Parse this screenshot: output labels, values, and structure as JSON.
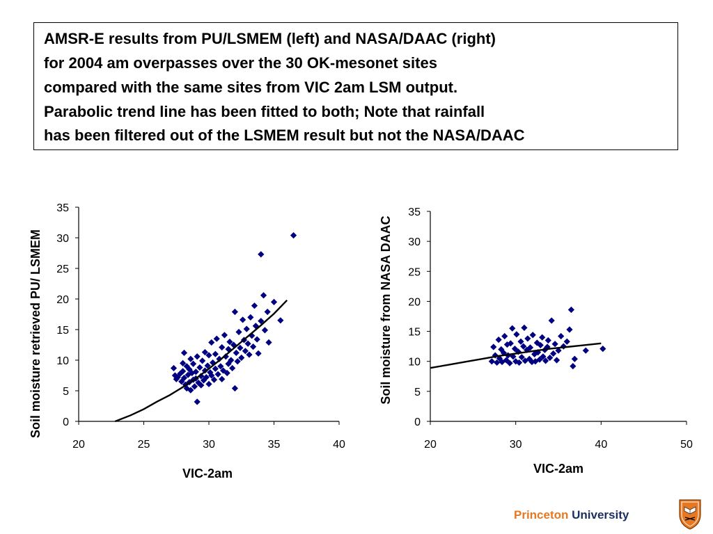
{
  "title_lines": [
    "AMSR-E results from PU/LSMEM (left) and NASA/DAAC (right)",
    "for 2004 am overpasses over the 30 OK-mesonet sites",
    "compared with the same sites from VIC 2am LSM output.",
    "Parabolic trend line has been fitted to both; Note that rainfall",
    "has been filtered out of the LSMEM result but not the NASA/DAAC"
  ],
  "footer": {
    "princeton": "Princeton",
    "university": "University"
  },
  "icons": {
    "logo": "princeton-shield-icon"
  },
  "colors": {
    "points": "#000080",
    "trend": "#000000",
    "brand_orange": "#e87722",
    "brand_navy": "#1b2f5e"
  },
  "chart_data": [
    {
      "type": "scatter",
      "xlabel": "VIC-2am",
      "ylabel": "Soil moisture retrieved  PU/ LSMEM",
      "xlim": [
        20,
        40
      ],
      "ylim": [
        0,
        35
      ],
      "xticks": [
        20,
        25,
        30,
        35,
        40
      ],
      "yticks": [
        0,
        5,
        10,
        15,
        20,
        25,
        30,
        35
      ],
      "grid": false,
      "legend": "none",
      "trend": {
        "kind": "parabolic",
        "points": [
          [
            22.8,
            0
          ],
          [
            24,
            1
          ],
          [
            25,
            2
          ],
          [
            26,
            3.2
          ],
          [
            27,
            4.3
          ],
          [
            28,
            5.6
          ],
          [
            29,
            7
          ],
          [
            30,
            8.6
          ],
          [
            31,
            10.3
          ],
          [
            32,
            12.1
          ],
          [
            33,
            13.9
          ],
          [
            34,
            15.7
          ],
          [
            35,
            17.6
          ],
          [
            36,
            19.8
          ]
        ]
      },
      "points": [
        [
          27.3,
          8.7
        ],
        [
          27.4,
          7.5
        ],
        [
          27.5,
          6.9
        ],
        [
          27.6,
          7.2
        ],
        [
          27.8,
          7.8
        ],
        [
          27.9,
          6.5
        ],
        [
          28.0,
          9.5
        ],
        [
          28.0,
          8.2
        ],
        [
          28.1,
          11.2
        ],
        [
          28.1,
          7.1
        ],
        [
          28.2,
          6.0
        ],
        [
          28.3,
          5.4
        ],
        [
          28.3,
          9.0
        ],
        [
          28.4,
          7.6
        ],
        [
          28.5,
          8.5
        ],
        [
          28.5,
          6.4
        ],
        [
          28.6,
          5.1
        ],
        [
          28.6,
          10.2
        ],
        [
          28.7,
          7.9
        ],
        [
          28.8,
          6.8
        ],
        [
          28.8,
          9.4
        ],
        [
          28.9,
          5.7
        ],
        [
          29.0,
          8.1
        ],
        [
          29.0,
          7.0
        ],
        [
          29.1,
          3.2
        ],
        [
          29.1,
          10.6
        ],
        [
          29.2,
          6.3
        ],
        [
          29.3,
          8.8
        ],
        [
          29.4,
          5.9
        ],
        [
          29.4,
          7.4
        ],
        [
          29.5,
          9.9
        ],
        [
          29.6,
          6.7
        ],
        [
          29.7,
          8.3
        ],
        [
          29.7,
          11.3
        ],
        [
          29.8,
          7.2
        ],
        [
          29.9,
          9.1
        ],
        [
          30.0,
          6.1
        ],
        [
          30.0,
          10.8
        ],
        [
          30.1,
          8.0
        ],
        [
          30.2,
          7.5
        ],
        [
          30.2,
          12.9
        ],
        [
          30.3,
          9.6
        ],
        [
          30.4,
          6.8
        ],
        [
          30.5,
          11.0
        ],
        [
          30.5,
          8.6
        ],
        [
          30.6,
          13.5
        ],
        [
          30.7,
          7.7
        ],
        [
          30.8,
          10.2
        ],
        [
          30.9,
          9.0
        ],
        [
          31.0,
          6.9
        ],
        [
          31.0,
          12.1
        ],
        [
          31.1,
          8.3
        ],
        [
          31.2,
          14.1
        ],
        [
          31.3,
          10.6
        ],
        [
          31.4,
          7.9
        ],
        [
          31.5,
          11.8
        ],
        [
          31.5,
          9.4
        ],
        [
          31.6,
          13.0
        ],
        [
          31.7,
          10.0
        ],
        [
          31.8,
          8.7
        ],
        [
          31.9,
          12.5
        ],
        [
          32.0,
          5.4
        ],
        [
          32.0,
          17.9
        ],
        [
          32.1,
          11.2
        ],
        [
          32.2,
          9.8
        ],
        [
          32.3,
          14.6
        ],
        [
          32.4,
          12.0
        ],
        [
          32.5,
          10.4
        ],
        [
          32.6,
          16.6
        ],
        [
          32.7,
          13.3
        ],
        [
          32.8,
          11.5
        ],
        [
          32.9,
          15.1
        ],
        [
          33.0,
          12.7
        ],
        [
          33.1,
          10.9
        ],
        [
          33.2,
          17.0
        ],
        [
          33.3,
          14.0
        ],
        [
          33.4,
          12.2
        ],
        [
          33.5,
          18.9
        ],
        [
          33.6,
          15.6
        ],
        [
          33.7,
          13.4
        ],
        [
          33.8,
          11.1
        ],
        [
          34.0,
          27.3
        ],
        [
          34.0,
          16.4
        ],
        [
          34.2,
          20.6
        ],
        [
          34.3,
          14.9
        ],
        [
          34.5,
          17.9
        ],
        [
          34.6,
          12.9
        ],
        [
          35.0,
          19.5
        ],
        [
          35.5,
          16.5
        ],
        [
          36.5,
          30.4
        ]
      ]
    },
    {
      "type": "scatter",
      "xlabel": "VIC-2am",
      "ylabel": "Soil moisture from NASA DAAC",
      "xlim": [
        20,
        50
      ],
      "ylim": [
        0,
        35
      ],
      "xticks": [
        20,
        30,
        40,
        50
      ],
      "yticks": [
        0,
        5,
        10,
        15,
        20,
        25,
        30,
        35
      ],
      "grid": false,
      "legend": "none",
      "trend": {
        "kind": "parabolic",
        "points": [
          [
            20,
            8.9
          ],
          [
            22,
            9.4
          ],
          [
            24,
            9.9
          ],
          [
            26,
            10.4
          ],
          [
            28,
            10.9
          ],
          [
            30,
            11.3
          ],
          [
            32,
            11.7
          ],
          [
            34,
            12.1
          ],
          [
            36,
            12.4
          ],
          [
            38,
            12.7
          ],
          [
            40,
            13.0
          ]
        ]
      },
      "points": [
        [
          27.2,
          10.0
        ],
        [
          27.4,
          12.4
        ],
        [
          27.6,
          11.0
        ],
        [
          27.8,
          9.8
        ],
        [
          28.0,
          13.6
        ],
        [
          28.1,
          10.5
        ],
        [
          28.3,
          12.0
        ],
        [
          28.4,
          9.9
        ],
        [
          28.6,
          11.4
        ],
        [
          28.7,
          14.2
        ],
        [
          28.9,
          10.2
        ],
        [
          29.0,
          12.8
        ],
        [
          29.1,
          11.0
        ],
        [
          29.3,
          9.7
        ],
        [
          29.4,
          13.0
        ],
        [
          29.6,
          15.5
        ],
        [
          29.7,
          10.8
        ],
        [
          29.9,
          12.1
        ],
        [
          30.0,
          10.0
        ],
        [
          30.1,
          14.5
        ],
        [
          30.3,
          11.6
        ],
        [
          30.4,
          9.8
        ],
        [
          30.6,
          13.3
        ],
        [
          30.7,
          10.7
        ],
        [
          30.9,
          12.5
        ],
        [
          31.0,
          15.6
        ],
        [
          31.1,
          10.1
        ],
        [
          31.3,
          11.9
        ],
        [
          31.4,
          13.8
        ],
        [
          31.6,
          10.4
        ],
        [
          31.7,
          12.3
        ],
        [
          31.9,
          9.9
        ],
        [
          32.0,
          14.4
        ],
        [
          32.2,
          11.2
        ],
        [
          32.3,
          10.0
        ],
        [
          32.5,
          13.1
        ],
        [
          32.6,
          11.5
        ],
        [
          32.8,
          10.3
        ],
        [
          32.9,
          12.7
        ],
        [
          33.1,
          14.0
        ],
        [
          33.2,
          10.8
        ],
        [
          33.4,
          11.9
        ],
        [
          33.5,
          10.1
        ],
        [
          33.7,
          12.4
        ],
        [
          33.8,
          13.5
        ],
        [
          34.0,
          10.6
        ],
        [
          34.2,
          16.8
        ],
        [
          34.4,
          11.3
        ],
        [
          34.6,
          12.9
        ],
        [
          34.8,
          10.2
        ],
        [
          35.0,
          11.8
        ],
        [
          35.3,
          14.2
        ],
        [
          35.6,
          12.5
        ],
        [
          36.0,
          13.3
        ],
        [
          36.3,
          15.3
        ],
        [
          36.5,
          18.6
        ],
        [
          36.7,
          9.2
        ],
        [
          36.9,
          10.4
        ],
        [
          38.2,
          11.8
        ],
        [
          40.2,
          12.1
        ]
      ]
    }
  ]
}
